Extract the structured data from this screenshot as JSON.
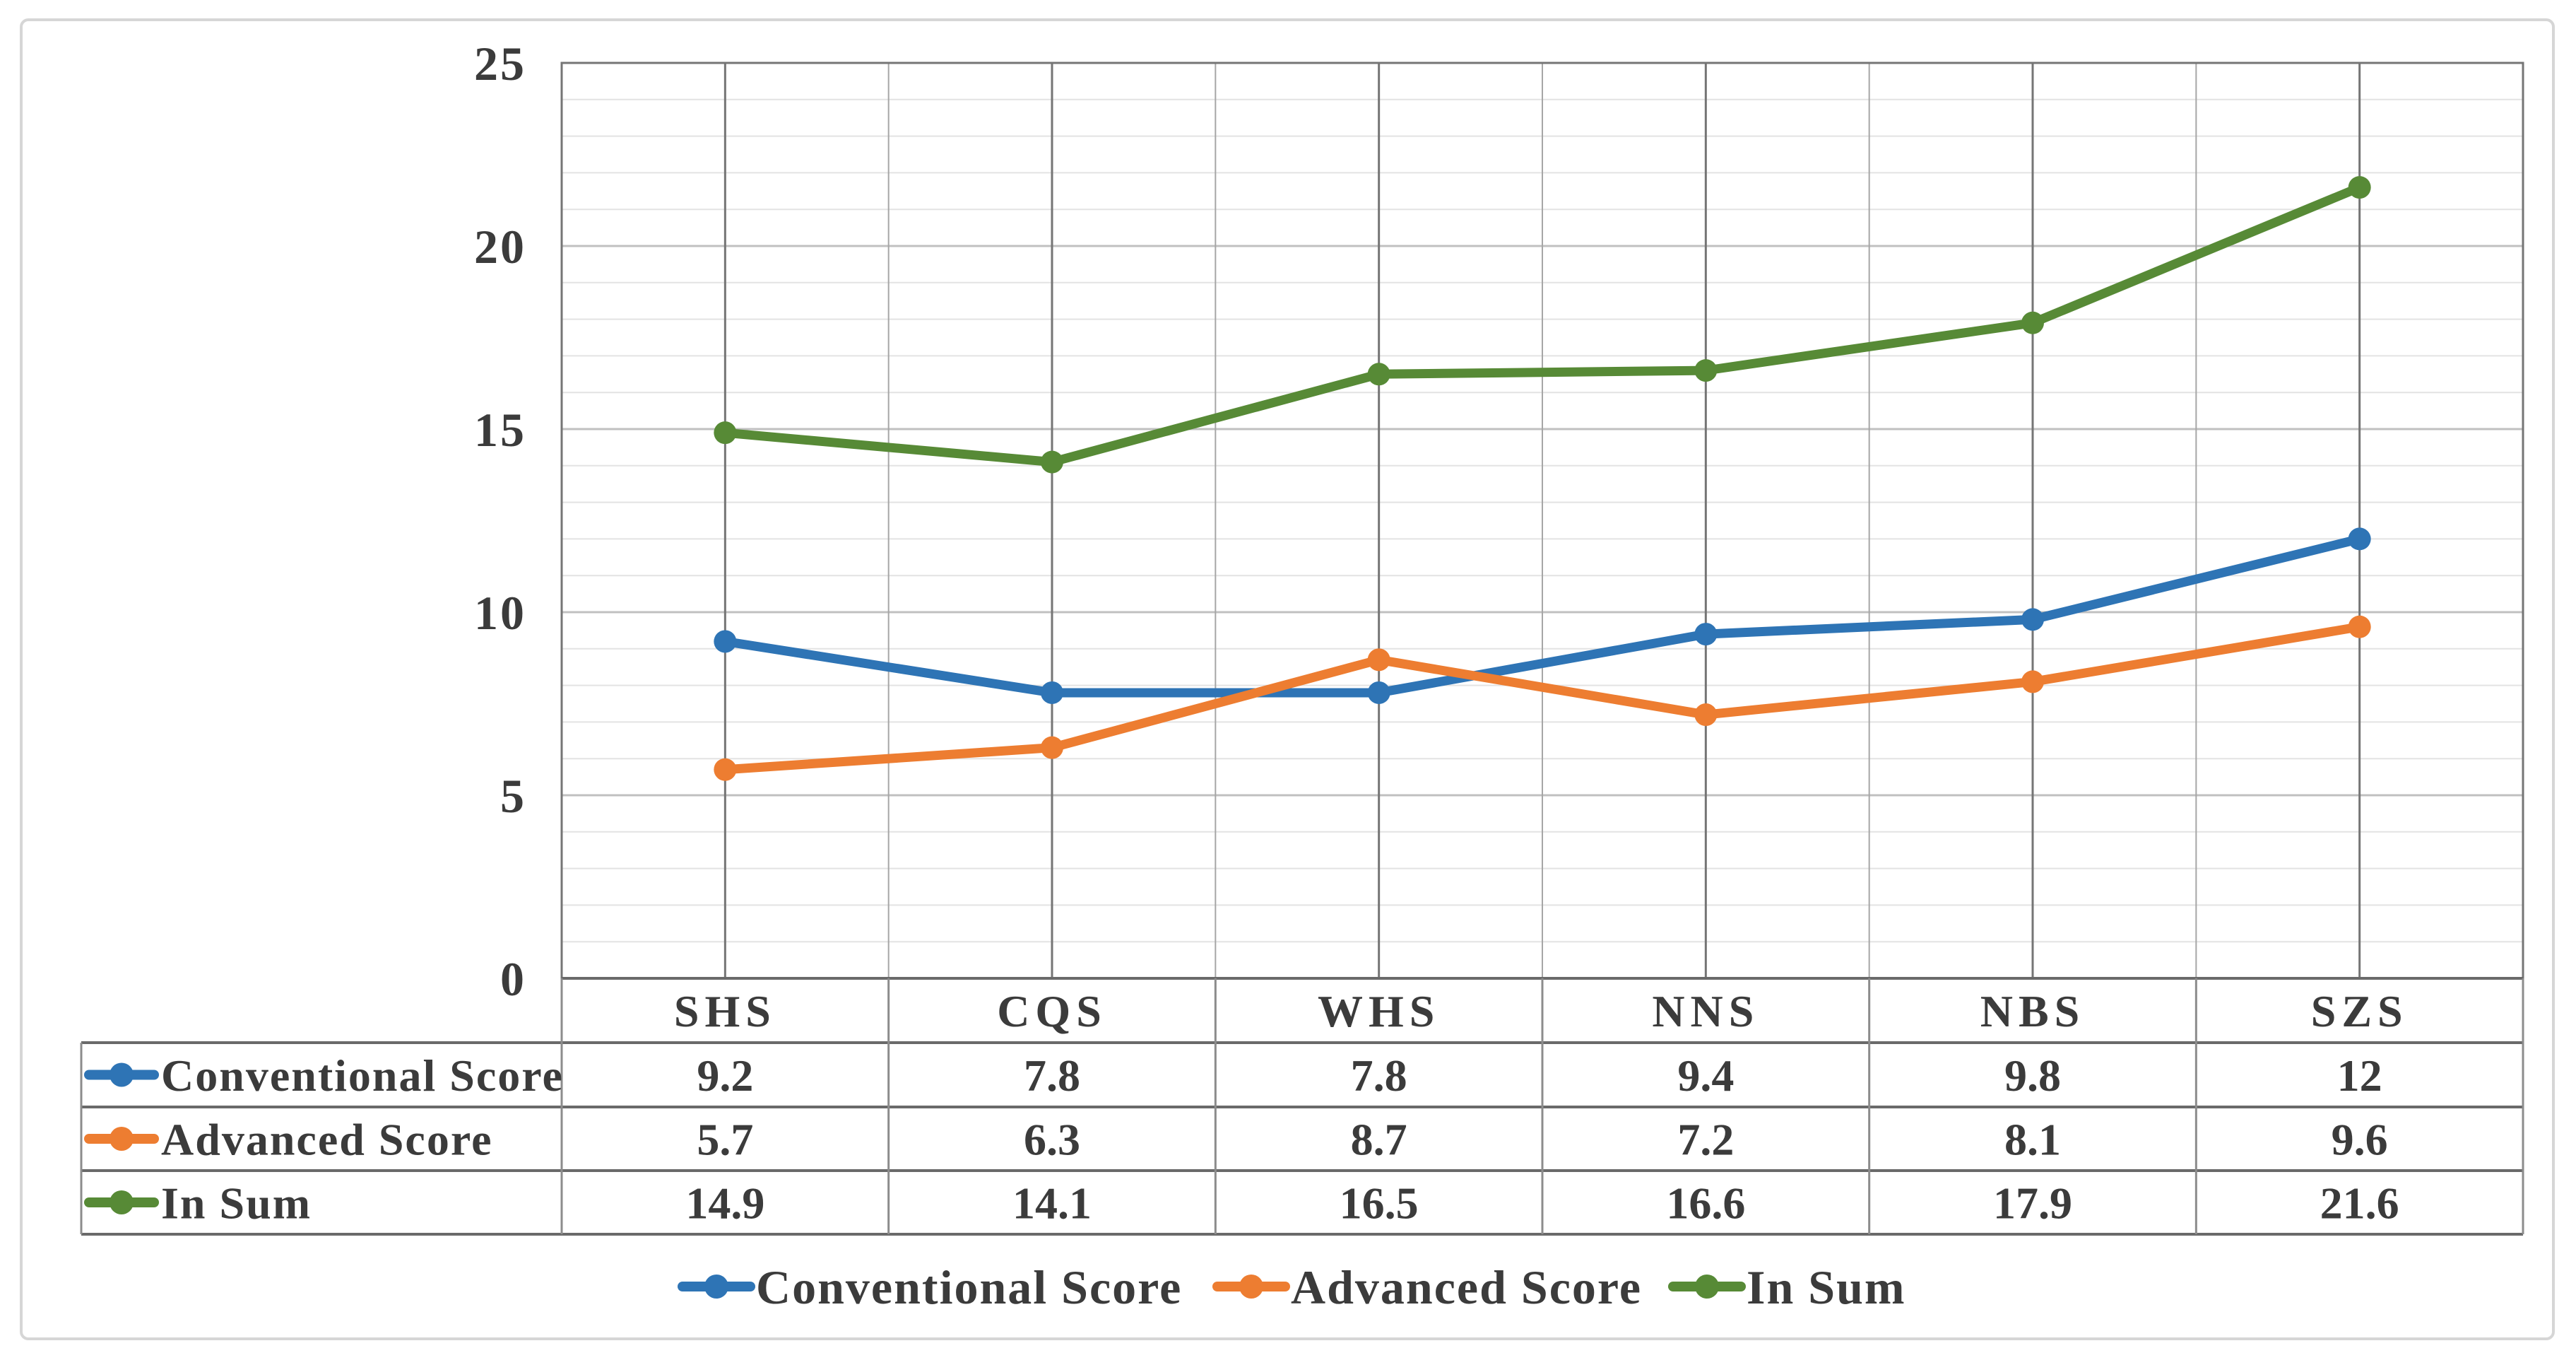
{
  "chart_data": {
    "type": "line",
    "categories": [
      "SHS",
      "CQS",
      "WHS",
      "NNS",
      "NBS",
      "SZS"
    ],
    "series": [
      {
        "name": "Conventional Score",
        "values": [
          9.2,
          7.8,
          7.8,
          9.4,
          9.8,
          12
        ],
        "display": [
          "9.2",
          "7.8",
          "7.8",
          "9.4",
          "9.8",
          "12"
        ],
        "color": "#2E74B5"
      },
      {
        "name": "Advanced Score",
        "values": [
          5.7,
          6.3,
          8.7,
          7.2,
          8.1,
          9.6
        ],
        "display": [
          "5.7",
          "6.3",
          "8.7",
          "7.2",
          "8.1",
          "9.6"
        ],
        "color": "#ED7D31"
      },
      {
        "name": "In Sum",
        "values": [
          14.9,
          14.1,
          16.5,
          16.6,
          17.9,
          21.6
        ],
        "display": [
          "14.9",
          "14.1",
          "16.5",
          "16.6",
          "17.9",
          "21.6"
        ],
        "color": "#578A36"
      }
    ],
    "title": "",
    "xlabel": "",
    "ylabel": "",
    "ylim": [
      0,
      25
    ],
    "y_major_ticks": [
      0,
      5,
      10,
      15,
      20,
      25
    ],
    "y_tick_labels": [
      "0",
      "5",
      "10",
      "15",
      "20",
      "25"
    ],
    "y_minor_step": 1,
    "grid": true,
    "data_table_shown": true,
    "legend_position": "bottom",
    "legend_items": [
      "Conventional Score",
      "Advanced Score",
      "In Sum"
    ]
  },
  "colors": {
    "background": "#FFFFFF",
    "text": "#3B3B3B",
    "outer_border": "#D6D6D6",
    "plot_border": "#757575",
    "grid_major_h": "#C0C0C0",
    "grid_minor_h": "#E3E3E3",
    "grid_vertical_major": "#757575",
    "grid_vertical_minor": "#A6A6A6",
    "table_border_h": "#6A6A6A",
    "table_border_v": "#8C8C8C"
  }
}
